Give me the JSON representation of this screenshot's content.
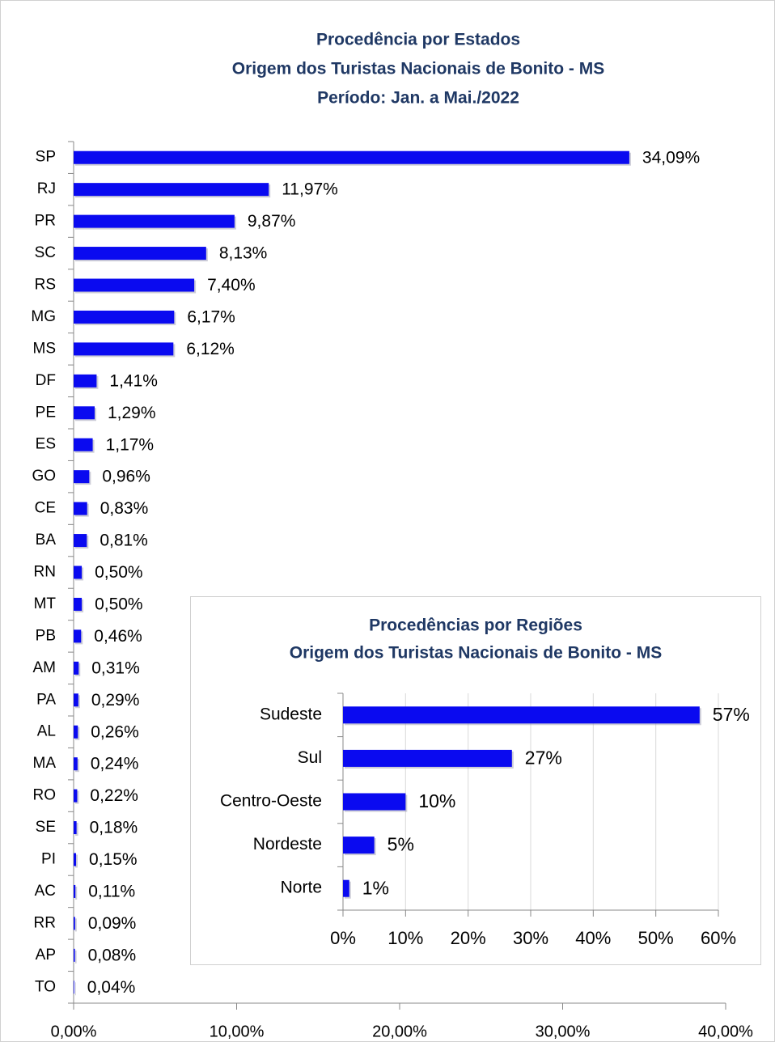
{
  "chart_data": [
    {
      "type": "bar",
      "orientation": "horizontal",
      "title": [
        "Procedência por Estados",
        "Origem dos Turistas Nacionais de Bonito - MS",
        "Período: Jan. a Mai./2022"
      ],
      "categories": [
        "SP",
        "RJ",
        "PR",
        "SC",
        "RS",
        "MG",
        "MS",
        "DF",
        "PE",
        "ES",
        "GO",
        "CE",
        "BA",
        "RN",
        "MT",
        "PB",
        "AM",
        "PA",
        "AL",
        "MA",
        "RO",
        "SE",
        "PI",
        "AC",
        "RR",
        "AP",
        "TO"
      ],
      "values": [
        34.09,
        11.97,
        9.87,
        8.13,
        7.4,
        6.17,
        6.12,
        1.41,
        1.29,
        1.17,
        0.96,
        0.83,
        0.81,
        0.5,
        0.5,
        0.46,
        0.31,
        0.29,
        0.26,
        0.24,
        0.22,
        0.18,
        0.15,
        0.11,
        0.09,
        0.08,
        0.04
      ],
      "value_labels": [
        "34,09%",
        "11,97%",
        "9,87%",
        "8,13%",
        "7,40%",
        "6,17%",
        "6,12%",
        "1,41%",
        "1,29%",
        "1,17%",
        "0,96%",
        "0,83%",
        "0,81%",
        "0,50%",
        "0,50%",
        "0,46%",
        "0,31%",
        "0,29%",
        "0,26%",
        "0,24%",
        "0,22%",
        "0,18%",
        "0,15%",
        "0,11%",
        "0,09%",
        "0,08%",
        "0,04%"
      ],
      "color": "#0a0af0",
      "xlim": [
        0,
        40
      ],
      "xticks": [
        {
          "value": 0,
          "label": "0,00%"
        },
        {
          "value": 10,
          "label": "10,00%"
        },
        {
          "value": 20,
          "label": "20,00%"
        },
        {
          "value": 30,
          "label": "30,00%"
        },
        {
          "value": 40,
          "label": "40,00%"
        }
      ],
      "grid": false
    },
    {
      "type": "bar",
      "orientation": "horizontal",
      "title": [
        "Procedências por Regiões",
        "Origem dos Turistas Nacionais de Bonito - MS"
      ],
      "categories": [
        "Sudeste",
        "Sul",
        "Centro-Oeste",
        "Nordeste",
        "Norte"
      ],
      "values": [
        57,
        27,
        10,
        5,
        1
      ],
      "value_labels": [
        "57%",
        "27%",
        "10%",
        "5%",
        "1%"
      ],
      "color": "#0a0af0",
      "xlim": [
        0,
        60
      ],
      "xticks": [
        {
          "value": 0,
          "label": "0%"
        },
        {
          "value": 10,
          "label": "10%"
        },
        {
          "value": 20,
          "label": "20%"
        },
        {
          "value": 30,
          "label": "30%"
        },
        {
          "value": 40,
          "label": "40%"
        },
        {
          "value": 50,
          "label": "50%"
        },
        {
          "value": 60,
          "label": "60%"
        }
      ],
      "grid": true
    }
  ]
}
